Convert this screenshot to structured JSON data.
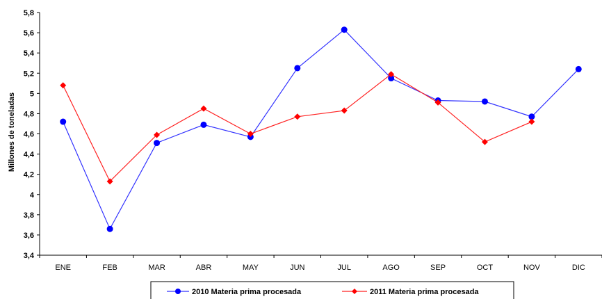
{
  "chart_data": {
    "type": "line",
    "categories": [
      "ENE",
      "FEB",
      "MAR",
      "ABR",
      "MAY",
      "JUN",
      "JUL",
      "AGO",
      "SEP",
      "OCT",
      "NOV",
      "DIC"
    ],
    "ylabel": "Millones de toneladas",
    "xlabel": "",
    "ylim": [
      3.4,
      5.8
    ],
    "yticks": [
      "3,4",
      "3,6",
      "3,8",
      "4",
      "4,2",
      "4,4",
      "4,6",
      "4,8",
      "5",
      "5,2",
      "5,4",
      "5,6",
      "5,8"
    ],
    "grid": false,
    "legend_position": "bottom",
    "series": [
      {
        "name": "2010 Materia prima procesada",
        "color": "#3333ff",
        "marker": "circle",
        "values": [
          4.72,
          3.66,
          4.51,
          4.69,
          4.57,
          5.25,
          5.63,
          5.15,
          4.93,
          4.92,
          4.77,
          5.24
        ]
      },
      {
        "name": "2011 Materia prima procesada",
        "color": "#ff2222",
        "marker": "diamond",
        "values": [
          5.08,
          4.13,
          4.59,
          4.85,
          4.6,
          4.77,
          4.83,
          5.19,
          4.91,
          4.52,
          4.72,
          null
        ]
      }
    ]
  }
}
